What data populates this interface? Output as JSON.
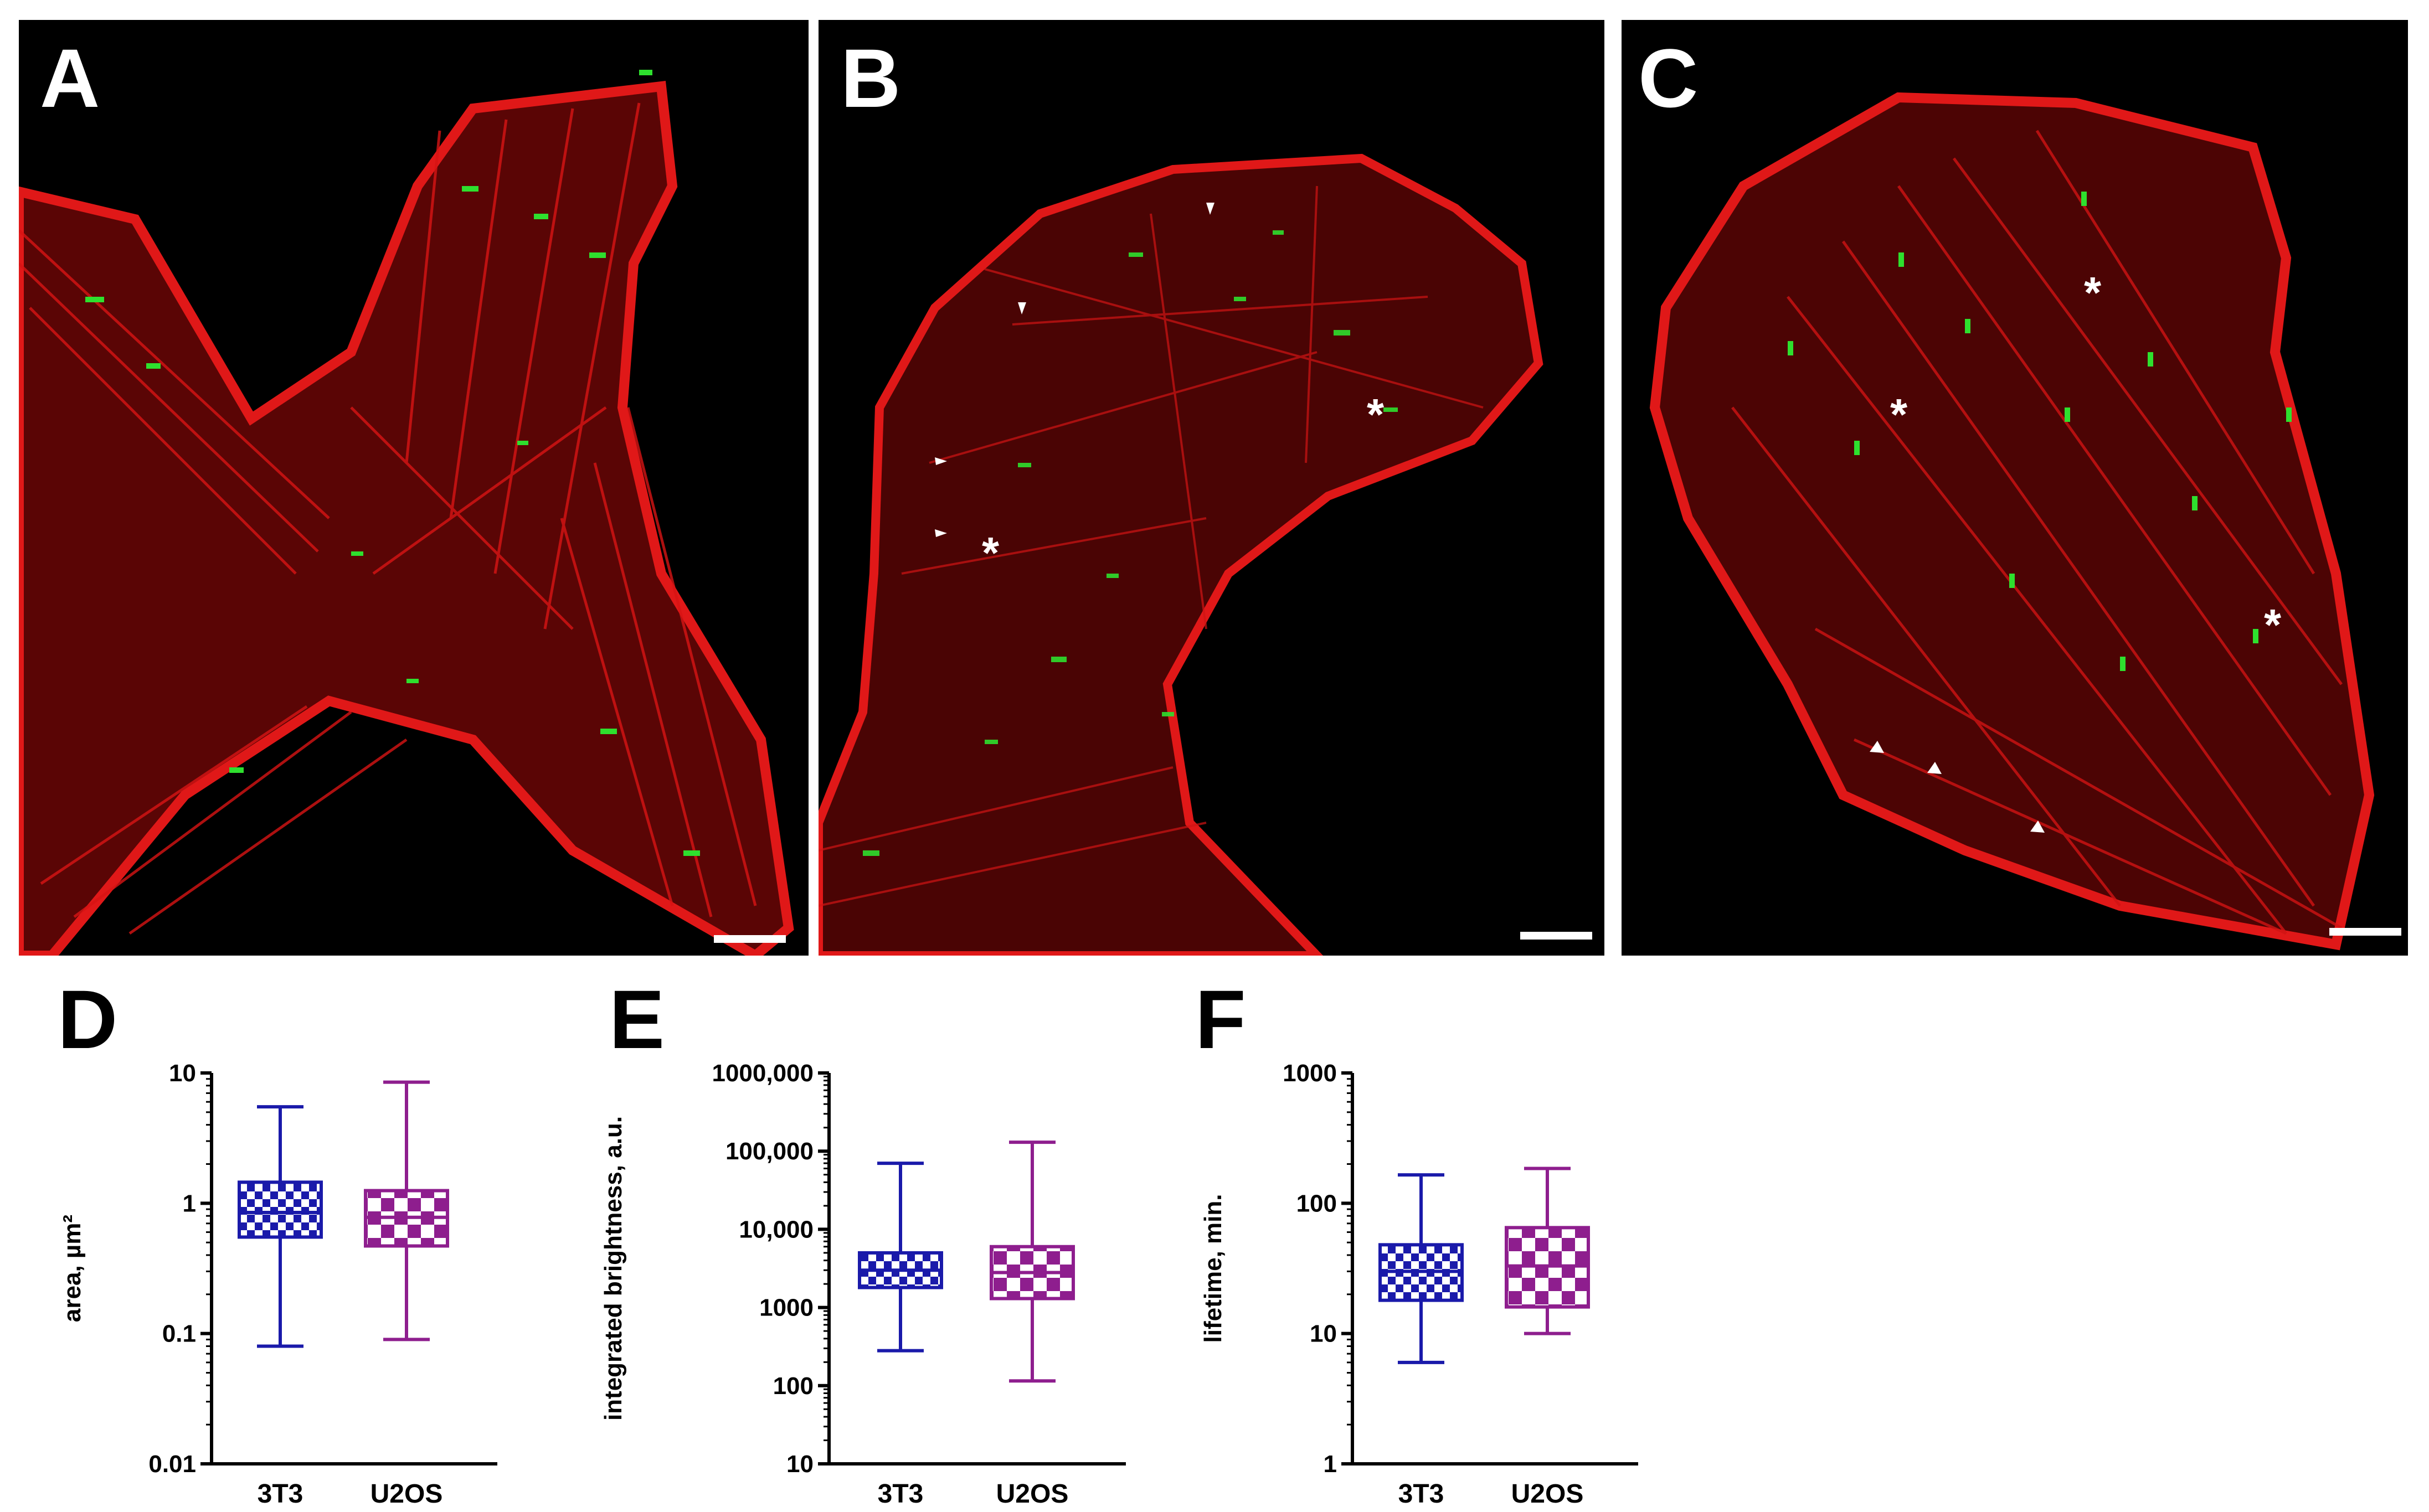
{
  "panels": [
    {
      "letter": "A"
    },
    {
      "letter": "B"
    },
    {
      "letter": "C"
    }
  ],
  "chart_letters": [
    "D",
    "E",
    "F"
  ],
  "colors": {
    "series_3T3": "#1a1aaa",
    "series_U2OS": "#8e1e8e",
    "actin": "#e01010",
    "adhesion": "#22d022"
  },
  "chart_data": [
    {
      "type": "box",
      "letter": "D",
      "ylabel": "area, µm²",
      "yscale": "log",
      "ylim": [
        0.01,
        10
      ],
      "yticks": [
        {
          "v": 10,
          "label": "10"
        },
        {
          "v": 1,
          "label": "1"
        },
        {
          "v": 0.1,
          "label": "0.1"
        },
        {
          "v": 0.01,
          "label": "0.01"
        }
      ],
      "categories": [
        "3T3",
        "U2OS"
      ],
      "boxes": [
        {
          "min": 0.08,
          "q1": 0.55,
          "median": 0.85,
          "q3": 1.45,
          "max": 5.5
        },
        {
          "min": 0.09,
          "q1": 0.47,
          "median": 0.78,
          "q3": 1.25,
          "max": 8.5
        }
      ]
    },
    {
      "type": "box",
      "letter": "E",
      "ylabel": "integrated brightness, a.u.",
      "yscale": "log",
      "ylim": [
        10,
        1000000
      ],
      "yticks": [
        {
          "v": 1000000,
          "label": "1000,000"
        },
        {
          "v": 100000,
          "label": "100,000"
        },
        {
          "v": 10000,
          "label": "10,000"
        },
        {
          "v": 1000,
          "label": "1000"
        },
        {
          "v": 100,
          "label": "100"
        },
        {
          "v": 10,
          "label": "10"
        }
      ],
      "categories": [
        "3T3",
        "U2OS"
      ],
      "boxes": [
        {
          "min": 280,
          "q1": 1800,
          "median": 3000,
          "q3": 5000,
          "max": 70000
        },
        {
          "min": 115,
          "q1": 1300,
          "median": 2800,
          "q3": 6000,
          "max": 130000
        }
      ]
    },
    {
      "type": "box",
      "letter": "F",
      "ylabel": "lifetime, min.",
      "yscale": "log",
      "ylim": [
        1,
        1000
      ],
      "yticks": [
        {
          "v": 1000,
          "label": "1000"
        },
        {
          "v": 100,
          "label": "100"
        },
        {
          "v": 10,
          "label": "10"
        },
        {
          "v": 1,
          "label": "1"
        }
      ],
      "categories": [
        "3T3",
        "U2OS"
      ],
      "boxes": [
        {
          "min": 6,
          "q1": 18,
          "median": 30,
          "q3": 48,
          "max": 165
        },
        {
          "min": 10,
          "q1": 16,
          "median": 33,
          "q3": 65,
          "max": 185
        }
      ]
    }
  ]
}
